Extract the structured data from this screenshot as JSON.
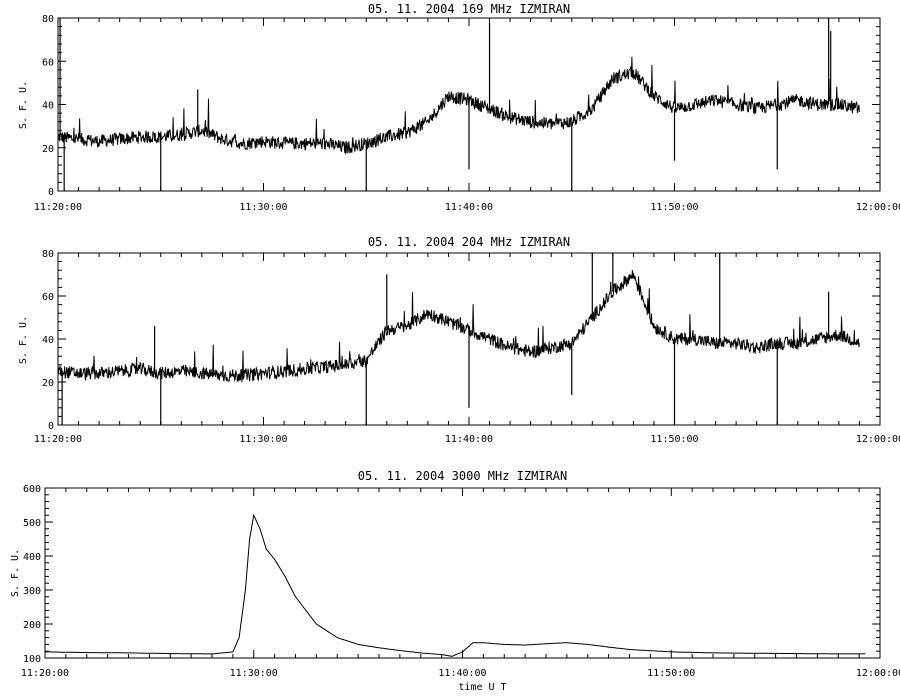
{
  "chart_data": [
    {
      "type": "line",
      "title": "05.  11.  2004    169  MHz    IZMIRAN",
      "ylabel": "S. F. U.",
      "xlabel": "",
      "x_range": [
        "11:20:00",
        "12:00:00"
      ],
      "xlim_min": [
        0,
        40
      ],
      "ylim": [
        0,
        80
      ],
      "x_ticks": [
        "11:20:00",
        "11:30:00",
        "11:40:00",
        "11:50:00",
        "12:00:00"
      ],
      "y_ticks": [
        0,
        20,
        40,
        60,
        80
      ],
      "series": [
        {
          "color": "#000000",
          "time_min": [
            0,
            1,
            2,
            3,
            4,
            5,
            6,
            7,
            8,
            9,
            10,
            11,
            12,
            13,
            14,
            15,
            16,
            17,
            18,
            19,
            20,
            21,
            22,
            23,
            24,
            25,
            26,
            27,
            28,
            29,
            30,
            31,
            32,
            33,
            34,
            35,
            36,
            37,
            38,
            39
          ],
          "values": [
            25,
            24,
            23,
            24,
            25,
            25,
            26,
            28,
            24,
            22,
            23,
            22,
            22,
            22,
            20,
            22,
            25,
            27,
            32,
            44,
            42,
            38,
            34,
            32,
            31,
            32,
            38,
            52,
            55,
            44,
            38,
            40,
            42,
            40,
            38,
            40,
            42,
            40,
            40,
            38
          ],
          "spikes": [
            {
              "t": 0.1,
              "v": 80
            },
            {
              "t": 0.3,
              "v": 0
            },
            {
              "t": 5.0,
              "v": 0
            },
            {
              "t": 6.8,
              "v": 47
            },
            {
              "t": 15.0,
              "v": 0
            },
            {
              "t": 20.0,
              "v": 10
            },
            {
              "t": 21.0,
              "v": 78
            },
            {
              "t": 25.0,
              "v": 0
            },
            {
              "t": 30.0,
              "v": 14
            },
            {
              "t": 35.0,
              "v": 10
            },
            {
              "t": 37.5,
              "v": 80
            },
            {
              "t": 37.6,
              "v": 74
            }
          ]
        }
      ]
    },
    {
      "type": "line",
      "title": "05.  11.  2004    204  MHz    IZMIRAN",
      "ylabel": "S. F. U.",
      "xlabel": "",
      "x_range": [
        "11:20:00",
        "12:00:00"
      ],
      "xlim_min": [
        0,
        40
      ],
      "ylim": [
        0,
        80
      ],
      "x_ticks": [
        "11:20:00",
        "11:30:00",
        "11:40:00",
        "11:50:00",
        "12:00:00"
      ],
      "y_ticks": [
        0,
        20,
        40,
        60,
        80
      ],
      "series": [
        {
          "color": "#000000",
          "time_min": [
            0,
            1,
            2,
            3,
            4,
            5,
            6,
            7,
            8,
            9,
            10,
            11,
            12,
            13,
            14,
            15,
            16,
            17,
            18,
            19,
            20,
            21,
            22,
            23,
            24,
            25,
            26,
            27,
            28,
            29,
            30,
            31,
            32,
            33,
            34,
            35,
            36,
            37,
            38,
            39
          ],
          "values": [
            25,
            24,
            24,
            25,
            26,
            24,
            25,
            24,
            23,
            23,
            24,
            25,
            26,
            27,
            28,
            30,
            44,
            46,
            52,
            48,
            44,
            40,
            36,
            34,
            36,
            38,
            50,
            62,
            70,
            46,
            40,
            40,
            38,
            38,
            36,
            38,
            38,
            40,
            42,
            38
          ],
          "spikes": [
            {
              "t": 0.2,
              "v": 0
            },
            {
              "t": 4.7,
              "v": 46
            },
            {
              "t": 5.0,
              "v": 0
            },
            {
              "t": 15.0,
              "v": 0
            },
            {
              "t": 16.0,
              "v": 70
            },
            {
              "t": 20.0,
              "v": 8
            },
            {
              "t": 25.0,
              "v": 14
            },
            {
              "t": 26.0,
              "v": 80
            },
            {
              "t": 27.0,
              "v": 80
            },
            {
              "t": 30.0,
              "v": 0
            },
            {
              "t": 32.2,
              "v": 80
            },
            {
              "t": 35.0,
              "v": 0
            },
            {
              "t": 37.5,
              "v": 62
            }
          ]
        }
      ]
    },
    {
      "type": "line",
      "title": "05.  11.  2004    3000  MHz    IZMIRAN",
      "ylabel": "S. F. U.",
      "xlabel": "time  U T",
      "x_range": [
        "11:20:00",
        "12:00:00"
      ],
      "xlim_min": [
        0,
        40
      ],
      "ylim": [
        100,
        600
      ],
      "x_ticks": [
        "11:20:00",
        "11:30:00",
        "11:40:00",
        "11:50:00",
        "12:00:00"
      ],
      "y_ticks": [
        100,
        200,
        300,
        400,
        500,
        600
      ],
      "series": [
        {
          "color": "#000000",
          "time_min": [
            0,
            2,
            4,
            6,
            8,
            9,
            9.3,
            9.6,
            9.8,
            10,
            10.3,
            10.6,
            11,
            11.5,
            12,
            13,
            14,
            15,
            16,
            17,
            18,
            19,
            19.5,
            20,
            20.5,
            21,
            22,
            23,
            24,
            25,
            26,
            27,
            28,
            30,
            32,
            34,
            36,
            38,
            39.3
          ],
          "values": [
            118,
            116,
            115,
            113,
            112,
            118,
            160,
            300,
            450,
            520,
            480,
            420,
            390,
            340,
            280,
            200,
            160,
            140,
            130,
            122,
            115,
            110,
            105,
            118,
            145,
            145,
            140,
            138,
            142,
            145,
            140,
            132,
            125,
            118,
            115,
            114,
            113,
            112,
            112
          ]
        }
      ]
    }
  ]
}
